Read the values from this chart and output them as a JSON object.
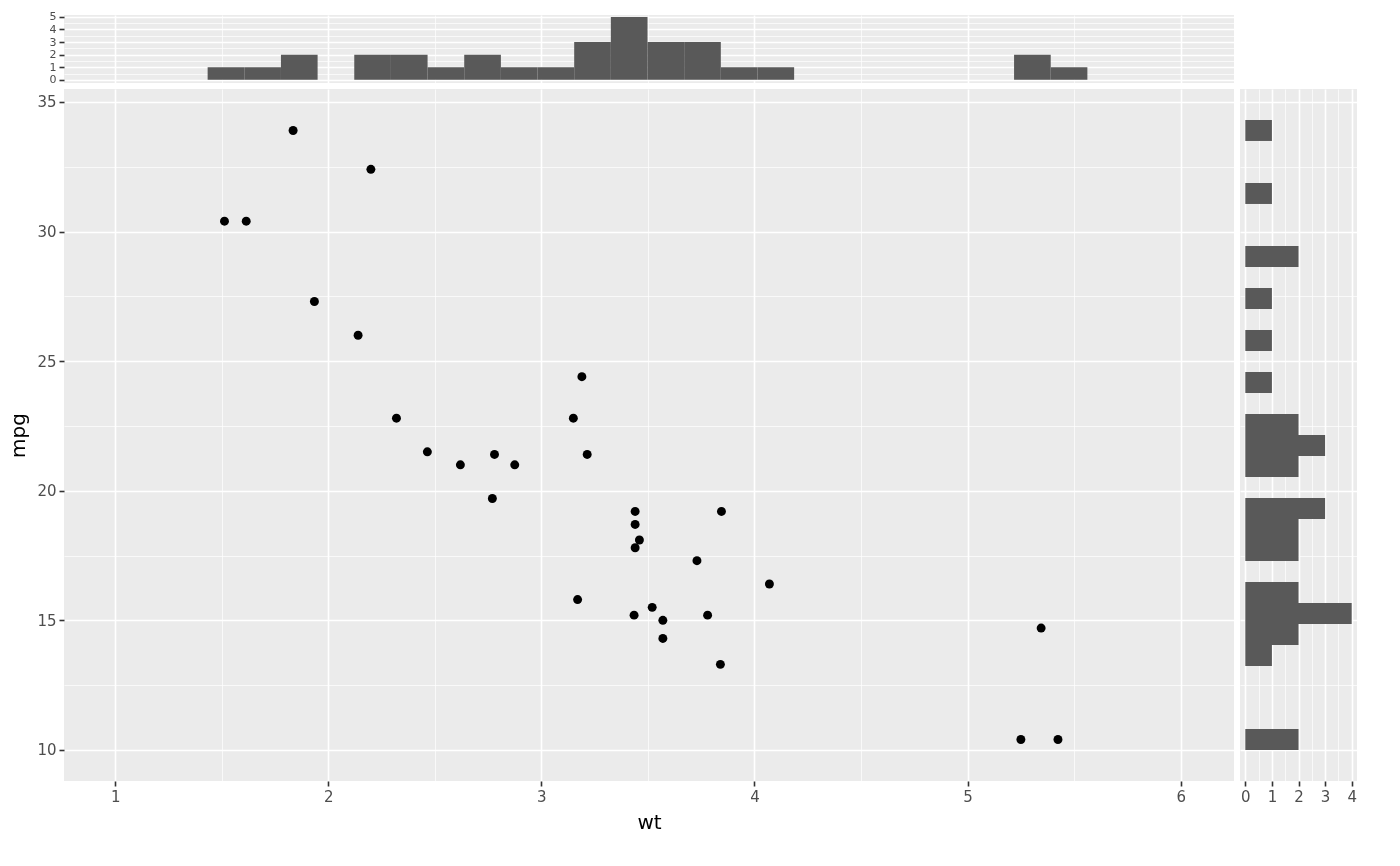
{
  "chart_data": [
    {
      "type": "histogram",
      "bins": [
        1.434,
        1.606,
        1.778,
        1.95,
        2.122,
        2.294,
        2.466,
        2.638,
        2.81,
        2.982,
        3.154,
        3.326,
        3.498,
        3.67,
        3.842,
        4.014,
        4.186,
        4.358,
        4.53,
        4.702,
        4.874,
        5.046,
        5.218,
        5.39,
        5.562
      ],
      "values": [
        1,
        1,
        2,
        0,
        2,
        2,
        1,
        2,
        1,
        1,
        3,
        5,
        3,
        3,
        1,
        1,
        0,
        0,
        0,
        0,
        0,
        0,
        2,
        1
      ],
      "color": "#595959",
      "xlim": [
        0.76,
        6.25
      ],
      "xticks": [
        1,
        2,
        3,
        4,
        5,
        6
      ],
      "ylim": [
        -0.25,
        5.15
      ],
      "yticks": [
        0,
        1,
        2,
        3,
        4,
        5
      ],
      "tick_labels": "y",
      "grid": true
    },
    {
      "type": "scatter",
      "x": [
        2.62,
        2.875,
        2.32,
        3.215,
        3.44,
        3.46,
        3.57,
        3.19,
        3.15,
        3.44,
        3.44,
        4.07,
        3.73,
        3.78,
        5.25,
        5.424,
        5.345,
        2.2,
        1.615,
        1.835,
        2.465,
        3.52,
        3.435,
        3.84,
        3.845,
        1.935,
        2.14,
        1.513,
        3.17,
        2.77,
        3.57,
        2.78
      ],
      "values": [
        21.0,
        21.0,
        22.8,
        21.4,
        18.7,
        18.1,
        14.3,
        24.4,
        22.8,
        19.2,
        17.8,
        16.4,
        17.3,
        15.2,
        10.4,
        10.4,
        14.7,
        32.4,
        30.4,
        33.9,
        21.5,
        15.5,
        15.2,
        13.3,
        19.2,
        27.3,
        26.0,
        30.4,
        15.8,
        19.7,
        15.0,
        21.4
      ],
      "color": "#000000",
      "marker": "circle",
      "xlabel": "wt",
      "ylabel": "mpg",
      "xlim": [
        0.76,
        6.25
      ],
      "xticks": [
        1,
        2,
        3,
        4,
        5,
        6
      ],
      "ylim": [
        8.8,
        35.5
      ],
      "yticks": [
        10,
        15,
        20,
        25,
        30,
        35
      ],
      "grid": true
    },
    {
      "type": "histogram",
      "orientation": "horizontal",
      "bins": [
        9.995,
        10.805,
        11.616,
        12.426,
        13.236,
        14.047,
        14.857,
        15.667,
        16.478,
        17.288,
        18.098,
        18.909,
        19.719,
        20.529,
        21.34,
        22.15,
        22.961,
        23.771,
        24.581,
        25.392,
        26.202,
        27.012,
        27.823,
        28.633,
        29.443,
        30.254,
        31.064,
        31.874,
        32.685,
        33.495,
        34.305
      ],
      "values": [
        2,
        0,
        0,
        0,
        1,
        2,
        4,
        2,
        0,
        2,
        2,
        3,
        0,
        2,
        3,
        2,
        0,
        1,
        0,
        1,
        0,
        1,
        0,
        2,
        0,
        0,
        1,
        0,
        0,
        1
      ],
      "color": "#595959",
      "xlim": [
        -0.2,
        4.2
      ],
      "xticks": [
        0,
        1,
        2,
        3,
        4
      ],
      "ylim": [
        8.8,
        35.5
      ],
      "yticks": [
        10,
        15,
        20,
        25,
        30,
        35
      ],
      "tick_labels": "x",
      "grid": true
    }
  ]
}
